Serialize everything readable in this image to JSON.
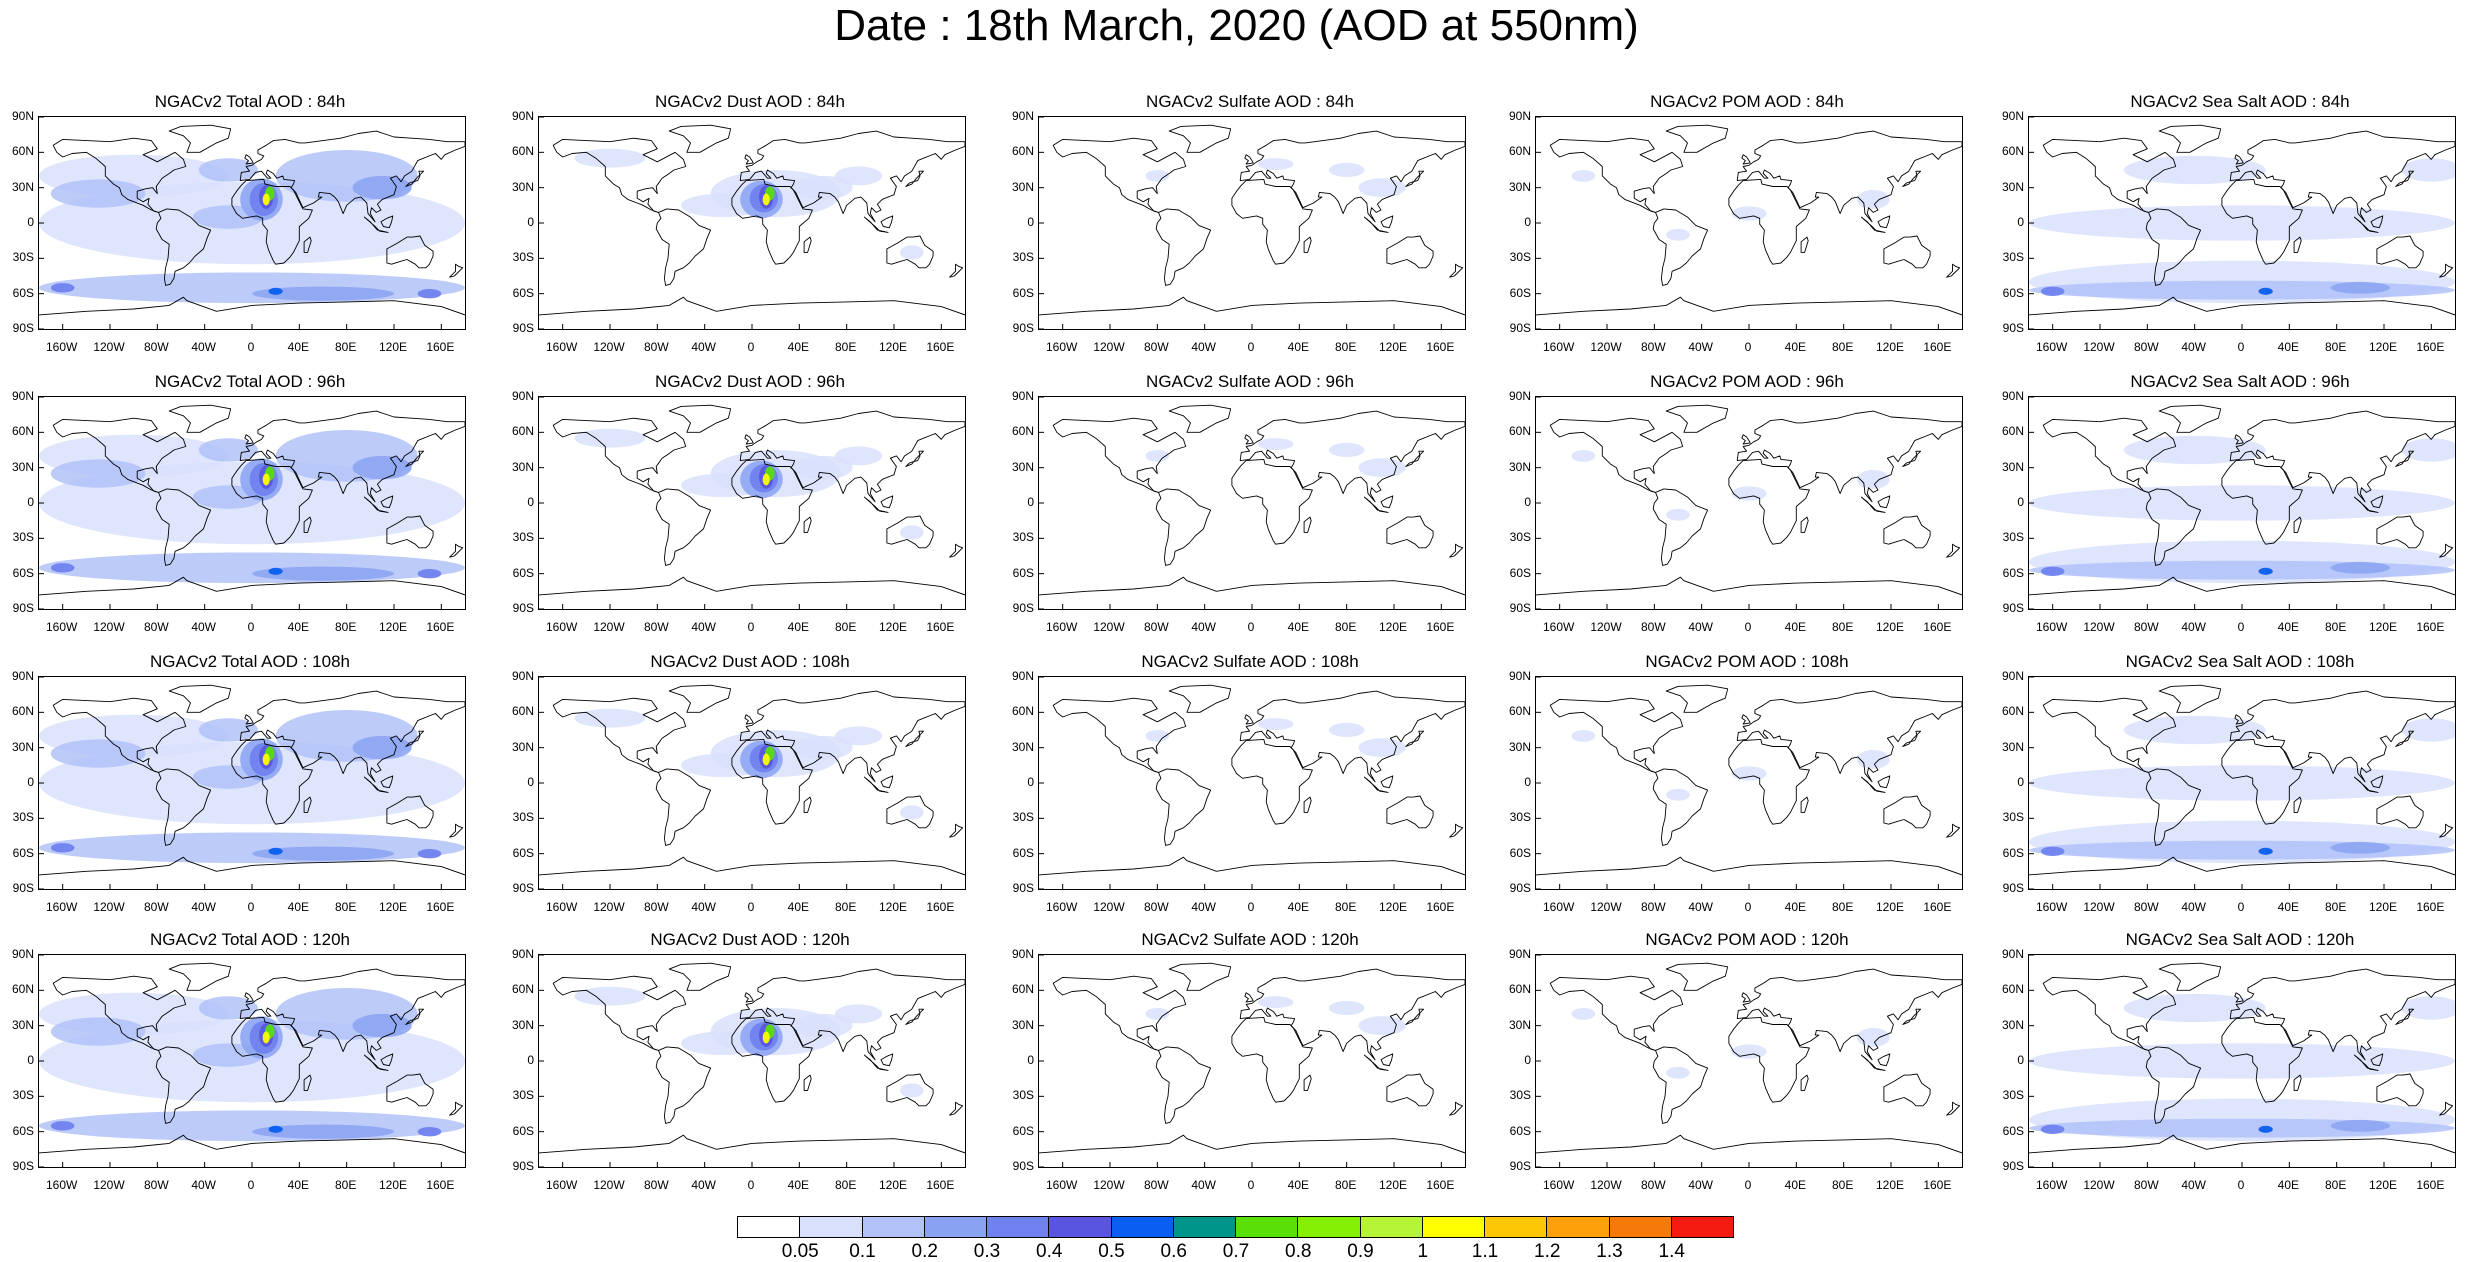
{
  "title": "Date : 18th March, 2020 (AOD at 550nm)",
  "lat_labels": [
    "90N",
    "60N",
    "30N",
    "0",
    "30S",
    "60S",
    "90S"
  ],
  "lon_labels": [
    "160W",
    "120W",
    "80W",
    "40W",
    "0",
    "40E",
    "80E",
    "120E",
    "160E"
  ],
  "colorbar": {
    "colors": [
      "#ffffff",
      "#d8e0fb",
      "#b2c2f8",
      "#8aa2f2",
      "#6f82ee",
      "#5a55e0",
      "#0a5ef0",
      "#00958a",
      "#5adf08",
      "#84ef02",
      "#b6f438",
      "#fefe00",
      "#fcc806",
      "#fca00a",
      "#f67a08",
      "#f41a10"
    ],
    "labels": [
      "0.05",
      "0.1",
      "0.2",
      "0.3",
      "0.4",
      "0.5",
      "0.6",
      "0.7",
      "0.8",
      "0.9",
      "1",
      "1.1",
      "1.2",
      "1.3",
      "1.4"
    ]
  },
  "panels": [
    {
      "title": "NGACv2 Total AOD : 84h",
      "species": "total",
      "lead": 84
    },
    {
      "title": "NGACv2 Dust AOD : 84h",
      "species": "dust",
      "lead": 84
    },
    {
      "title": "NGACv2 Sulfate AOD : 84h",
      "species": "sulfate",
      "lead": 84
    },
    {
      "title": "NGACv2 POM AOD : 84h",
      "species": "pom",
      "lead": 84
    },
    {
      "title": "NGACv2 Sea Salt AOD : 84h",
      "species": "seasalt",
      "lead": 84
    },
    {
      "title": "NGACv2 Total AOD : 96h",
      "species": "total",
      "lead": 96
    },
    {
      "title": "NGACv2 Dust AOD : 96h",
      "species": "dust",
      "lead": 96
    },
    {
      "title": "NGACv2 Sulfate AOD : 96h",
      "species": "sulfate",
      "lead": 96
    },
    {
      "title": "NGACv2 POM AOD : 96h",
      "species": "pom",
      "lead": 96
    },
    {
      "title": "NGACv2 Sea Salt AOD : 96h",
      "species": "seasalt",
      "lead": 96
    },
    {
      "title": "NGACv2 Total AOD : 108h",
      "species": "total",
      "lead": 108
    },
    {
      "title": "NGACv2 Dust AOD : 108h",
      "species": "dust",
      "lead": 108
    },
    {
      "title": "NGACv2 Sulfate AOD : 108h",
      "species": "sulfate",
      "lead": 108
    },
    {
      "title": "NGACv2 POM AOD : 108h",
      "species": "pom",
      "lead": 108
    },
    {
      "title": "NGACv2 Sea Salt AOD : 108h",
      "species": "seasalt",
      "lead": 108
    },
    {
      "title": "NGACv2 Total AOD : 120h",
      "species": "total",
      "lead": 120
    },
    {
      "title": "NGACv2 Dust AOD : 120h",
      "species": "dust",
      "lead": 120
    },
    {
      "title": "NGACv2 Sulfate AOD : 120h",
      "species": "sulfate",
      "lead": 120
    },
    {
      "title": "NGACv2 POM AOD : 120h",
      "species": "pom",
      "lead": 120
    },
    {
      "title": "NGACv2 Sea Salt  AOD : 120h",
      "species": "seasalt",
      "lead": 120
    }
  ]
}
